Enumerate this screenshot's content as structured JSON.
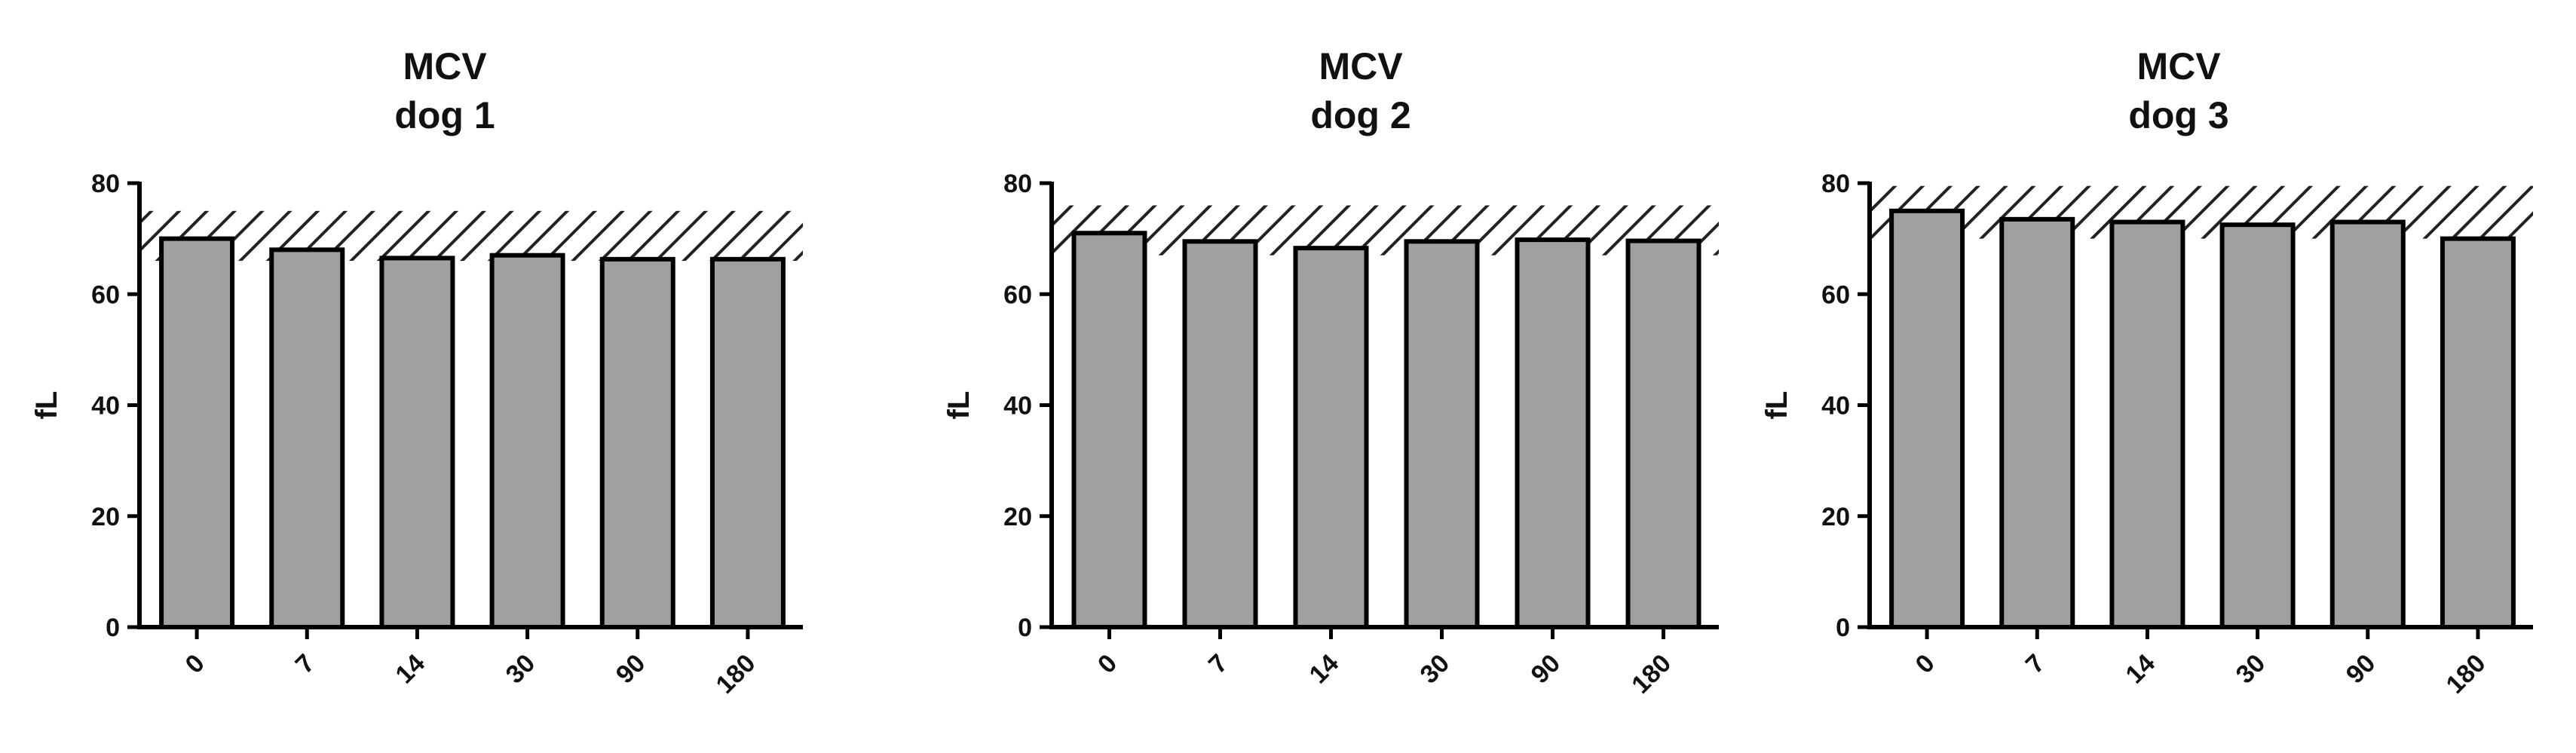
{
  "colors": {
    "bar_fill": "#a0a0a3",
    "bar_stroke": "#000000",
    "hatch": "#222222"
  },
  "chart_data": [
    {
      "type": "bar",
      "title": "MCV",
      "subtitle": "dog 1",
      "xlabel": "",
      "ylabel": "fL",
      "ylim": [
        0,
        80
      ],
      "yticks": [
        0,
        20,
        40,
        60,
        80
      ],
      "categories": [
        "0",
        "7",
        "14",
        "30",
        "90",
        "180"
      ],
      "values": [
        70,
        68,
        66.5,
        67,
        66.3,
        66.3
      ],
      "reference_range": [
        66,
        75
      ],
      "grid": false,
      "legend": "none"
    },
    {
      "type": "bar",
      "title": "MCV",
      "subtitle": "dog 2",
      "xlabel": "",
      "ylabel": "fL",
      "ylim": [
        0,
        80
      ],
      "yticks": [
        0,
        20,
        40,
        60,
        80
      ],
      "categories": [
        "0",
        "7",
        "14",
        "30",
        "90",
        "180"
      ],
      "values": [
        71,
        69.5,
        68.3,
        69.5,
        69.8,
        69.6
      ],
      "reference_range": [
        67,
        76
      ],
      "grid": false,
      "legend": "none"
    },
    {
      "type": "bar",
      "title": "MCV",
      "subtitle": "dog 3",
      "xlabel": "",
      "ylabel": "fL",
      "ylim": [
        0,
        80
      ],
      "yticks": [
        0,
        20,
        40,
        60,
        80
      ],
      "categories": [
        "0",
        "7",
        "14",
        "30",
        "90",
        "180"
      ],
      "values": [
        75,
        73.5,
        73,
        72.5,
        73,
        70
      ],
      "reference_range": [
        70,
        79.5
      ],
      "grid": false,
      "legend": "none"
    }
  ]
}
